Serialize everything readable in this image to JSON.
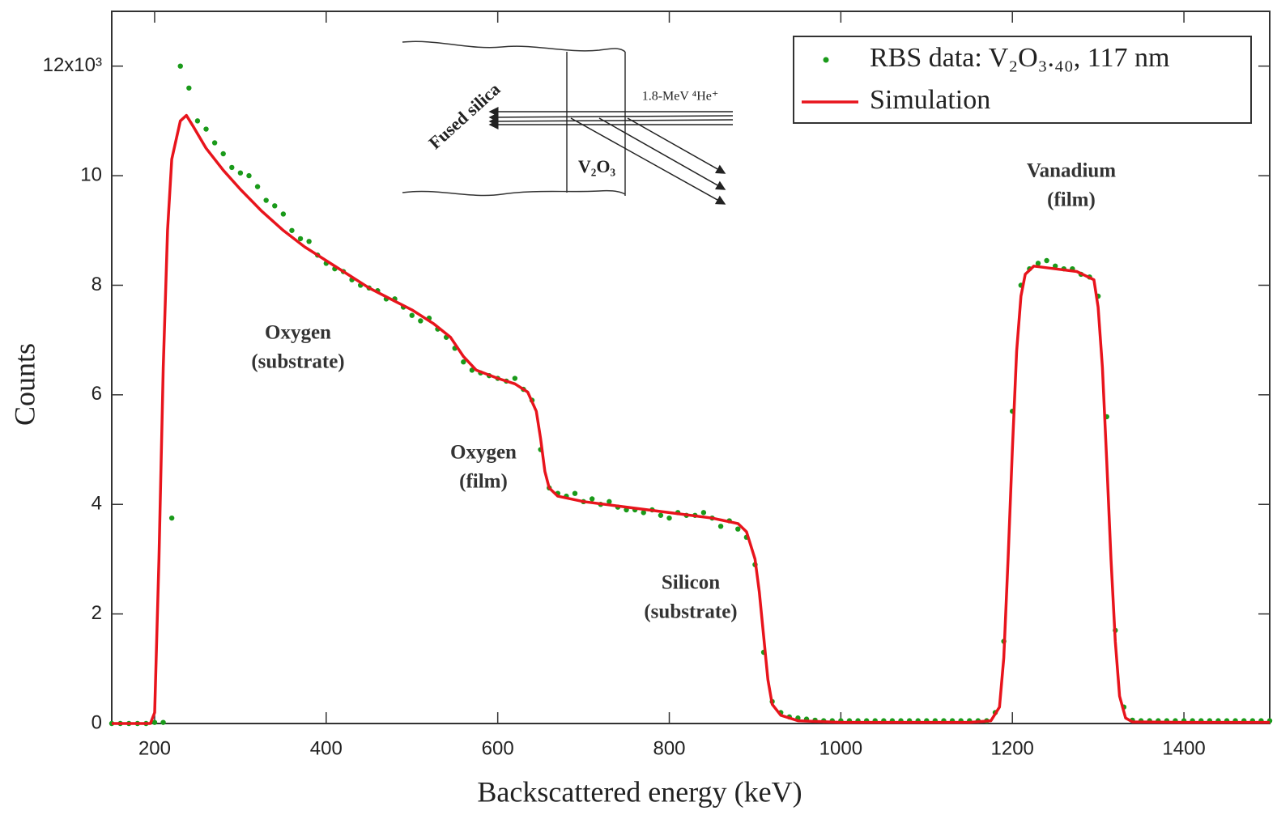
{
  "chart_data": {
    "type": "line",
    "x_label": "Backscattered energy (keV)",
    "y_label": "Counts",
    "xlim": [
      150,
      1500
    ],
    "ylim": [
      0,
      13
    ],
    "xticks": [
      200,
      400,
      600,
      800,
      1000,
      1200,
      1400
    ],
    "yticks": [
      0,
      2,
      4,
      6,
      8,
      10,
      {
        "value": 12,
        "label": "12x10³"
      }
    ],
    "legend": "upper right",
    "series": [
      {
        "name": "RBS data:  V₂O₃.₄₀,  117 nm",
        "type": "scatter",
        "color": "#1a9a1a",
        "x": [
          150,
          160,
          170,
          180,
          190,
          200,
          210,
          220,
          230,
          240,
          250,
          260,
          270,
          280,
          290,
          300,
          310,
          320,
          330,
          340,
          350,
          360,
          370,
          380,
          390,
          400,
          410,
          420,
          430,
          440,
          450,
          460,
          470,
          480,
          490,
          500,
          510,
          520,
          530,
          540,
          550,
          560,
          570,
          580,
          590,
          600,
          610,
          620,
          630,
          640,
          650,
          660,
          670,
          680,
          690,
          700,
          710,
          720,
          730,
          740,
          750,
          760,
          770,
          780,
          790,
          800,
          810,
          820,
          830,
          840,
          850,
          860,
          870,
          880,
          890,
          900,
          910,
          920,
          930,
          940,
          950,
          960,
          970,
          980,
          990,
          1000,
          1010,
          1020,
          1030,
          1040,
          1050,
          1060,
          1070,
          1080,
          1090,
          1100,
          1110,
          1120,
          1130,
          1140,
          1150,
          1160,
          1170,
          1180,
          1190,
          1200,
          1210,
          1220,
          1230,
          1240,
          1250,
          1260,
          1270,
          1280,
          1290,
          1300,
          1310,
          1320,
          1330,
          1340,
          1350,
          1360,
          1370,
          1380,
          1390,
          1400,
          1410,
          1420,
          1430,
          1440,
          1450,
          1460,
          1470,
          1480,
          1490,
          1500
        ],
        "values": [
          0,
          0,
          0,
          0,
          0,
          0.02,
          0.02,
          3.75,
          12.0,
          11.6,
          11.0,
          10.85,
          10.6,
          10.4,
          10.15,
          10.05,
          10.0,
          9.8,
          9.55,
          9.45,
          9.3,
          9.0,
          8.85,
          8.8,
          8.55,
          8.4,
          8.3,
          8.25,
          8.1,
          8.0,
          7.95,
          7.9,
          7.75,
          7.75,
          7.6,
          7.45,
          7.35,
          7.4,
          7.2,
          7.05,
          6.85,
          6.6,
          6.45,
          6.4,
          6.35,
          6.3,
          6.25,
          6.3,
          6.1,
          5.9,
          5.0,
          4.3,
          4.2,
          4.15,
          4.2,
          4.05,
          4.1,
          4.0,
          4.05,
          3.95,
          3.9,
          3.9,
          3.85,
          3.9,
          3.8,
          3.75,
          3.85,
          3.8,
          3.8,
          3.85,
          3.75,
          3.6,
          3.7,
          3.55,
          3.4,
          2.9,
          1.3,
          0.4,
          0.2,
          0.12,
          0.1,
          0.08,
          0.06,
          0.05,
          0.05,
          0.05,
          0.05,
          0.05,
          0.05,
          0.05,
          0.05,
          0.05,
          0.05,
          0.05,
          0.05,
          0.05,
          0.05,
          0.05,
          0.05,
          0.05,
          0.05,
          0.05,
          0.05,
          0.2,
          1.5,
          5.7,
          8.0,
          8.3,
          8.4,
          8.45,
          8.35,
          8.3,
          8.3,
          8.2,
          8.15,
          7.8,
          5.6,
          1.7,
          0.3,
          0.06,
          0.05,
          0.05,
          0.05,
          0.05,
          0.05,
          0.05,
          0.05,
          0.05,
          0.05,
          0.05,
          0.05,
          0.05,
          0.05,
          0.05,
          0.05,
          0.05
        ]
      },
      {
        "name": "Simulation",
        "type": "line",
        "color": "#e8141c",
        "x": [
          150,
          195,
          200,
          205,
          210,
          215,
          220,
          230,
          237,
          245,
          260,
          280,
          300,
          325,
          350,
          375,
          400,
          425,
          450,
          475,
          500,
          525,
          545,
          560,
          575,
          600,
          620,
          635,
          645,
          650,
          655,
          660,
          670,
          700,
          750,
          800,
          850,
          880,
          890,
          900,
          905,
          910,
          915,
          920,
          930,
          950,
          1000,
          1150,
          1175,
          1185,
          1190,
          1195,
          1200,
          1205,
          1210,
          1215,
          1225,
          1250,
          1275,
          1295,
          1300,
          1305,
          1310,
          1315,
          1320,
          1325,
          1332,
          1340,
          1400,
          1500
        ],
        "values": [
          0,
          0,
          0.2,
          3,
          6.5,
          9,
          10.3,
          11,
          11.1,
          10.9,
          10.5,
          10.1,
          9.75,
          9.35,
          9.0,
          8.7,
          8.45,
          8.2,
          7.95,
          7.75,
          7.55,
          7.3,
          7.05,
          6.7,
          6.45,
          6.3,
          6.2,
          6.05,
          5.7,
          5.2,
          4.6,
          4.3,
          4.15,
          4.05,
          3.95,
          3.85,
          3.75,
          3.65,
          3.5,
          3.0,
          2.4,
          1.6,
          0.8,
          0.35,
          0.15,
          0.05,
          0.02,
          0.02,
          0.05,
          0.3,
          1.2,
          3,
          5,
          6.8,
          7.8,
          8.2,
          8.35,
          8.3,
          8.25,
          8.1,
          7.6,
          6.5,
          4.8,
          3.0,
          1.5,
          0.5,
          0.1,
          0.03,
          0.02,
          0.02
        ]
      }
    ],
    "annotations": [
      {
        "lines": [
          "Oxygen",
          "(substrate)"
        ]
      },
      {
        "lines": [
          "Oxygen",
          "(film)"
        ]
      },
      {
        "lines": [
          "Silicon",
          "(substrate)"
        ]
      },
      {
        "lines": [
          "Vanadium",
          "(film)"
        ]
      }
    ],
    "inset": {
      "substrate": "Fused silica",
      "beam": "1.8-MeV ⁴He⁺",
      "film": "V₂O₃"
    }
  }
}
